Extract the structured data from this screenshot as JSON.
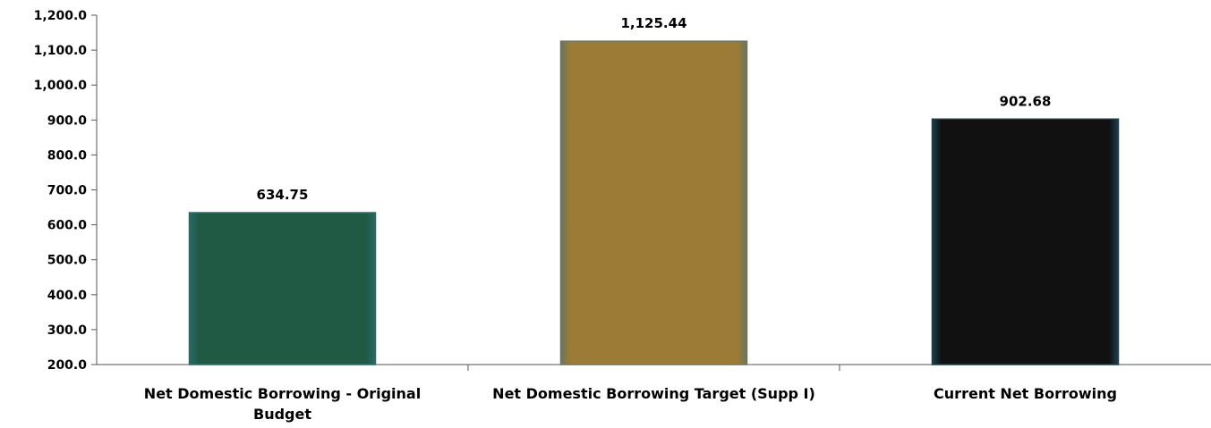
{
  "chart_data": {
    "type": "bar",
    "categories": [
      "Net Domestic Borrowing - Original Budget",
      "Net Domestic Borrowing Target (Supp I)",
      "Current Net Borrowing"
    ],
    "category_lines": [
      [
        "Net Domestic Borrowing - Original",
        "Budget"
      ],
      [
        "Net Domestic Borrowing Target (Supp I)"
      ],
      [
        "Current Net Borrowing"
      ]
    ],
    "values": [
      634.75,
      1125.44,
      902.68
    ],
    "data_labels": [
      "634.75",
      "1,125.44",
      "902.68"
    ],
    "y_ticks": [
      200,
      300,
      400,
      500,
      600,
      700,
      800,
      900,
      1000,
      1100,
      1200
    ],
    "y_tick_labels": [
      "200.0",
      "300.0",
      "400.0",
      "500.0",
      "600.0",
      "700.0",
      "800.0",
      "900.0",
      "1,000.0",
      "1,100.0",
      "1,200.0"
    ],
    "ylim": [
      200,
      1200
    ],
    "bar_colors": [
      "#205a45",
      "#9b7b35",
      "#111111"
    ],
    "bar_edge_colors": [
      "#2a6a66",
      "#6a7560",
      "#1c3f4c"
    ],
    "grid": false,
    "legend": "none",
    "title": "",
    "xlabel": "",
    "ylabel": ""
  }
}
